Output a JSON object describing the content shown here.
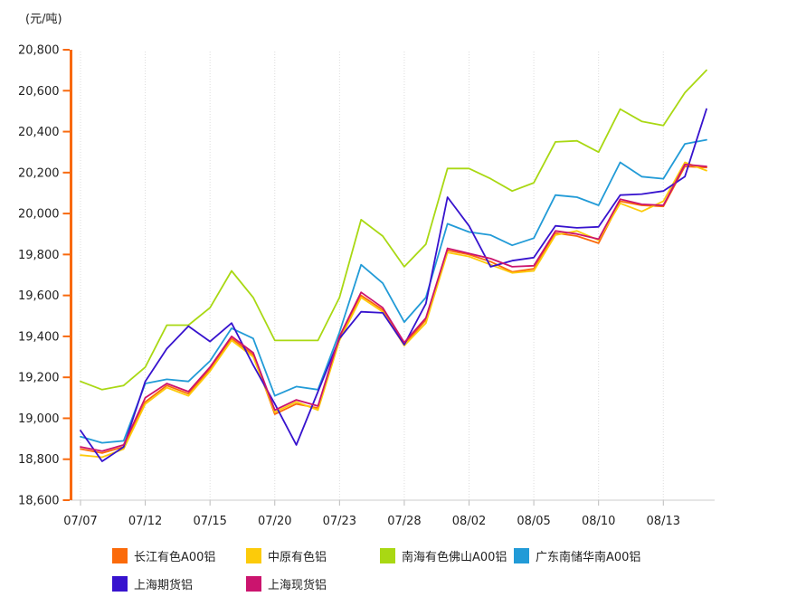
{
  "chart_data": {
    "type": "line",
    "title": "",
    "unit_label": "(元/吨)",
    "ylabel": "元/吨",
    "ylim": [
      18600,
      20800
    ],
    "y_tick_step": 200,
    "y_tick_labels": [
      "18,600",
      "18,800",
      "19,000",
      "19,200",
      "19,400",
      "19,600",
      "19,800",
      "20,000",
      "20,200",
      "20,400",
      "20,600",
      "20,800"
    ],
    "grid": "vertical-dotted",
    "legend_position": "bottom",
    "axis_color": "#F8690D",
    "x": [
      "07/07",
      "07/08",
      "07/09",
      "07/12",
      "07/13",
      "07/14",
      "07/15",
      "07/16",
      "07/19",
      "07/20",
      "07/21",
      "07/22",
      "07/23",
      "07/26",
      "07/27",
      "07/28",
      "07/29",
      "07/30",
      "08/02",
      "08/03",
      "08/04",
      "08/05",
      "08/06",
      "08/09",
      "08/10",
      "08/11",
      "08/12",
      "08/13",
      "08/16",
      "08/17"
    ],
    "x_label_indices": [
      0,
      3,
      6,
      9,
      12,
      15,
      18,
      21,
      24,
      27
    ],
    "x_axis_labels": [
      "07/07",
      "07/12",
      "07/15",
      "07/20",
      "07/23",
      "07/28",
      "08/02",
      "08/05",
      "08/10",
      "08/13"
    ],
    "series": [
      {
        "name": "长江有色A00铝",
        "color": "#FB6A0A",
        "values": [
          18850,
          18830,
          18860,
          19080,
          19160,
          19120,
          19240,
          19390,
          19310,
          19020,
          19070,
          19050,
          19390,
          19600,
          19530,
          19360,
          19480,
          19820,
          19800,
          19765,
          19715,
          19730,
          19905,
          19890,
          19855,
          20060,
          20040,
          20035,
          20230,
          20225
        ]
      },
      {
        "name": "中原有色铝",
        "color": "#FCCB0A",
        "values": [
          18820,
          18810,
          18850,
          19070,
          19150,
          19110,
          19230,
          19380,
          19300,
          19030,
          19080,
          19040,
          19380,
          19590,
          19520,
          19355,
          19465,
          19810,
          19790,
          19750,
          19710,
          19720,
          19895,
          19915,
          19870,
          20050,
          20010,
          20060,
          20250,
          20210
        ]
      },
      {
        "name": "南海有色佛山A00铝",
        "color": "#A9D813",
        "values": [
          19180,
          19140,
          19160,
          19250,
          19455,
          19455,
          19540,
          19720,
          19590,
          19380,
          19380,
          19380,
          19590,
          19970,
          19890,
          19740,
          19850,
          20220,
          20220,
          20170,
          20110,
          20150,
          20350,
          20355,
          20300,
          20510,
          20450,
          20430,
          20590,
          20700
        ]
      },
      {
        "name": "广东南储华南A00铝",
        "color": "#229BD7",
        "values": [
          18910,
          18880,
          18890,
          19170,
          19190,
          19180,
          19280,
          19440,
          19390,
          19110,
          19155,
          19140,
          19420,
          19750,
          19660,
          19470,
          19590,
          19950,
          19910,
          19895,
          19845,
          19880,
          20090,
          20080,
          20040,
          20250,
          20180,
          20170,
          20340,
          20360
        ]
      },
      {
        "name": "上海期货铝",
        "color": "#3713CE",
        "values": [
          18940,
          18790,
          18860,
          19180,
          19340,
          19450,
          19375,
          19465,
          19260,
          19070,
          18870,
          19130,
          19390,
          19520,
          19515,
          19360,
          19560,
          20080,
          19940,
          19740,
          19770,
          19785,
          19940,
          19930,
          19935,
          20090,
          20095,
          20110,
          20180,
          20510
        ]
      },
      {
        "name": "上海现货铝",
        "color": "#CB146E",
        "values": [
          18860,
          18840,
          18870,
          19100,
          19170,
          19130,
          19250,
          19400,
          19320,
          19040,
          19090,
          19060,
          19400,
          19615,
          19540,
          19370,
          19490,
          19830,
          19805,
          19780,
          19740,
          19745,
          19915,
          19900,
          19875,
          20070,
          20045,
          20040,
          20240,
          20230
        ]
      }
    ]
  }
}
